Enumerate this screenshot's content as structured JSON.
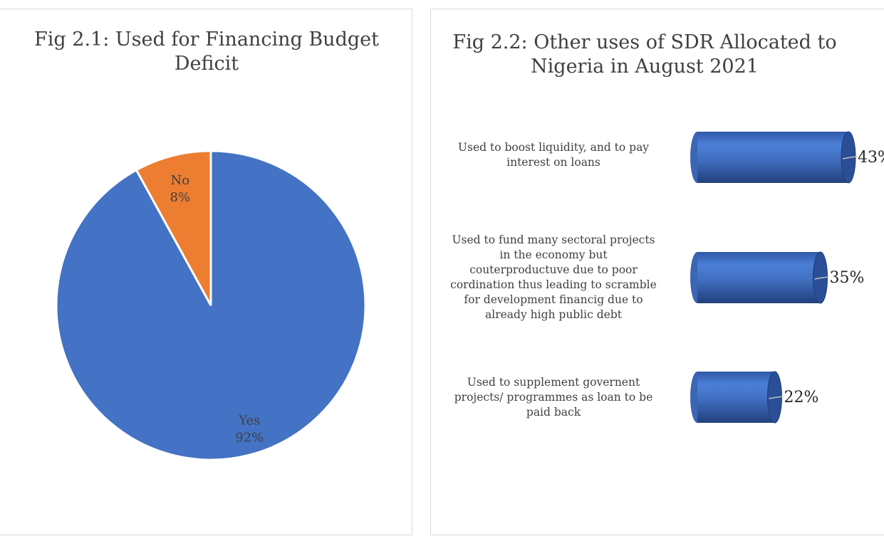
{
  "chart_data": [
    {
      "type": "pie",
      "title": "Fig 2.1: Used for Financing Budget Deficit",
      "categories": [
        "Yes",
        "No"
      ],
      "values": [
        92,
        8
      ],
      "labels": [
        "92%",
        "8%"
      ],
      "colors": [
        "#4472C4",
        "#ED7D31"
      ],
      "legend": "none"
    },
    {
      "type": "bar",
      "orientation": "horizontal",
      "style": "3d-cylinder",
      "title": "Fig 2.2: Other uses of SDR Allocated to Nigeria in August 2021",
      "categories": [
        "Used to boost liquidity, and to pay interest on loans",
        "Used to fund many sectoral projects in the economy but couterproductuve due to poor cordination thus leading to scramble for development financig due to already high public debt",
        "Used to supplement governent projects/ programmes as loan to be paid back"
      ],
      "category_lines": [
        [
          "Used to boost liquidity, and to pay",
          "interest on loans"
        ],
        [
          "Used to fund many sectoral projects",
          "in the economy but",
          "couterproductuve due to poor",
          "cordination thus leading to scramble",
          "for development financig due to",
          "already high public debt"
        ],
        [
          "Used to supplement governent",
          "projects/ programmes as loan to be",
          "paid back"
        ]
      ],
      "values": [
        43,
        35,
        22
      ],
      "labels": [
        "43%",
        "35%",
        "22%"
      ],
      "color": "#4472C4"
    }
  ]
}
